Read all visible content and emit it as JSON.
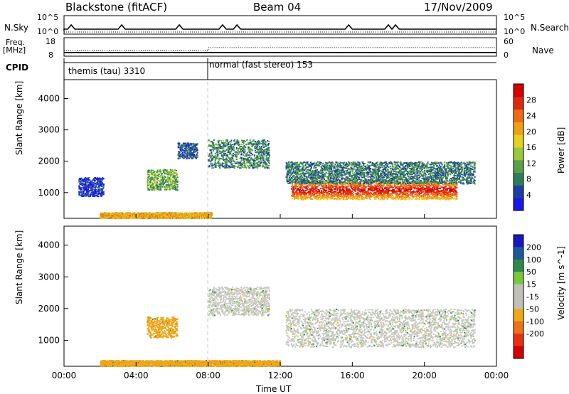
{
  "header": {
    "station": "Blackstone (fitACF)",
    "beam": "Beam 04",
    "date": "17/Nov/2009"
  },
  "side_labels": {
    "nsky": "N.Sky",
    "nsky_scale_top": "10^5",
    "nsky_scale_bottom": "10^0",
    "nsearch": "N.Search",
    "nsearch_scale_top": "10^5",
    "nsearch_scale_bottom": "10^0",
    "freq_line1": "Freq.",
    "freq_line2": "[MHz]",
    "freq_top": "18",
    "freq_bottom": "8",
    "nave": "Nave",
    "nave_top": "60",
    "nave_bottom": "0",
    "cpid": "CPID"
  },
  "cpid_segments": [
    {
      "label": "themis (tau) 3310",
      "start": "00:00"
    },
    {
      "label": "normal (fast stereo) 153",
      "start": "08:00"
    }
  ],
  "colors": {
    "power_scale": [
      "#1818e8",
      "#1c3fa6",
      "#2f7d5a",
      "#5aa04a",
      "#9ac83a",
      "#e8d020",
      "#f0a018",
      "#ee6a14",
      "#e02810",
      "#d40000"
    ],
    "velocity_scale": [
      "#1818c0",
      "#1a5a9a",
      "#2e8a4a",
      "#7ac83a",
      "#c0c0b8",
      "#c0c0b8",
      "#f0a818",
      "#f07018",
      "#e83010",
      "#d40000"
    ],
    "velocity_fill_main": "#c8c8c0",
    "velocity_fill_early": "#f2a418"
  },
  "chart_data": [
    {
      "type": "line",
      "panel": "N.Sky / N.Search",
      "series": [
        {
          "name": "N.Sky",
          "style": "solid"
        },
        {
          "name": "N.Search",
          "style": "dotted"
        }
      ],
      "yscale": "log",
      "ylim": [
        "10^0",
        "10^5"
      ]
    },
    {
      "type": "line",
      "panel": "Freq. / Nave",
      "series": [
        {
          "name": "Freq.",
          "style": "solid",
          "values_mhz": [
            {
              "x": "00:00",
              "y": 10
            },
            {
              "x": "08:00",
              "y": 10
            },
            {
              "x": "24:00",
              "y": 10
            }
          ]
        },
        {
          "name": "Nave",
          "style": "dotted",
          "values": [
            {
              "x": "00:00",
              "y": 18
            },
            {
              "x": "08:00",
              "y": 28
            },
            {
              "x": "24:00",
              "y": 28
            }
          ]
        }
      ],
      "ylim_left": [
        8,
        18
      ],
      "ylim_right": [
        0,
        60
      ]
    },
    {
      "type": "heatmap",
      "panel": "power",
      "ylabel": "Slant Range [km]",
      "y_ticks": [
        "1000",
        "2000",
        "3000",
        "4000"
      ],
      "ylim": [
        180,
        4600
      ],
      "colorbar_label": "Power [dB]",
      "colorbar_ticks": [
        "4",
        "8",
        "12",
        "16",
        "20",
        "24",
        "28"
      ],
      "clim": [
        0,
        32
      ],
      "echo_regions": [
        {
          "t_start": 0.8,
          "t_end": 2.2,
          "r_min": 900,
          "r_max": 1500,
          "db": 3
        },
        {
          "t_start": 4.6,
          "t_end": 6.3,
          "r_min": 1100,
          "r_max": 1750,
          "db": 12
        },
        {
          "t_start": 6.3,
          "t_end": 7.4,
          "r_min": 2100,
          "r_max": 2600,
          "db": 6
        },
        {
          "t_start": 8.0,
          "t_end": 11.4,
          "r_min": 1800,
          "r_max": 2700,
          "db": 9
        },
        {
          "t_start": 12.6,
          "t_end": 21.8,
          "r_min": 800,
          "r_max": 1400,
          "db": 27
        },
        {
          "t_start": 12.3,
          "t_end": 22.8,
          "r_min": 1300,
          "r_max": 2000,
          "db": 8
        },
        {
          "t_start": 2.0,
          "t_end": 8.2,
          "r_min": 200,
          "r_max": 380,
          "db": 20
        }
      ]
    },
    {
      "type": "heatmap",
      "panel": "velocity",
      "ylabel": "Slant Range [km]",
      "y_ticks": [
        "1000",
        "2000",
        "3000",
        "4000"
      ],
      "ylim": [
        180,
        4600
      ],
      "xlabel": "Time UT",
      "x_ticks": [
        "00:00",
        "04:00",
        "08:00",
        "12:00",
        "16:00",
        "20:00",
        "00:00"
      ],
      "xlim_hours": [
        0,
        24
      ],
      "colorbar_label": "Velocity [m s^-1]",
      "colorbar_ticks": [
        "200",
        "100",
        "50",
        "15",
        "-15",
        "-50",
        "-100",
        "-200"
      ],
      "echo_regions": [
        {
          "t_start": 4.6,
          "t_end": 6.3,
          "r_min": 1100,
          "r_max": 1750,
          "v": -60
        },
        {
          "t_start": 8.0,
          "t_end": 11.4,
          "r_min": 1800,
          "r_max": 2700,
          "v": 0
        },
        {
          "t_start": 12.3,
          "t_end": 22.8,
          "r_min": 800,
          "r_max": 2000,
          "v": 0
        },
        {
          "t_start": 2.0,
          "t_end": 12.0,
          "r_min": 200,
          "r_max": 380,
          "v": -60
        }
      ]
    }
  ]
}
